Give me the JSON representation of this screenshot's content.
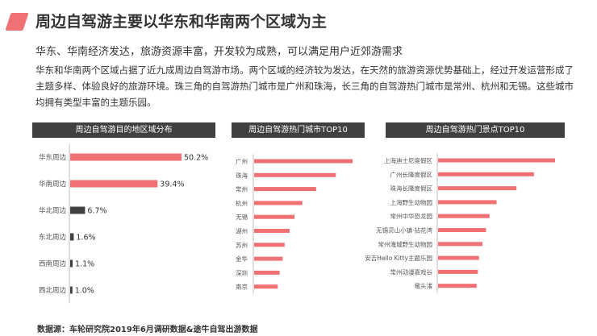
{
  "title": "周边自驾游主要以华东和华南两个区域为主",
  "subtitle": "华东、华南经济发达，旅游资源丰富，开发较为成熟，可以满足用户近郊游需求",
  "body": "华东和华南两个区域占据了近九成周边自驾游市场。两个区域的经济较为发达，在天然的旅游资源优势基础上，经过开发运营形成了主题多样、体验良好的旅游环境。珠三角的自驾游热门城市是广州和珠海，长三角的自驾游热门城市是常州、杭州和无锡。这些城市均拥有类型丰富的主题乐园。",
  "source": "数据源：车轮研究院2019年6月调研数据&途牛自驾出游数据",
  "colors": {
    "accent": "#f07174",
    "bar": "#f07174",
    "bar_dark": "#404040",
    "header": "#404040"
  },
  "chart_data": [
    {
      "type": "bar",
      "orientation": "horizontal",
      "title": "周边自驾游目的地区域分布",
      "categories": [
        "华东周边",
        "华南周边",
        "华北周边",
        "东北周边",
        "西南周边",
        "西北周边"
      ],
      "values": [
        50.2,
        39.4,
        6.7,
        1.6,
        1.1,
        1.0
      ],
      "labels": [
        "50.2%",
        "39.4%",
        "6.7%",
        "1.6%",
        "1.1%",
        "1.0%"
      ],
      "bar_colors": [
        "#f07174",
        "#f07174",
        "#404040",
        "#404040",
        "#404040",
        "#404040"
      ]
    },
    {
      "type": "bar",
      "orientation": "horizontal",
      "title": "周边自驾游热门城市TOP10",
      "categories": [
        "广州",
        "珠海",
        "常州",
        "杭州",
        "无锡",
        "湖州",
        "苏州",
        "金华",
        "深圳",
        "南京"
      ],
      "values": [
        100,
        83,
        63,
        49,
        41,
        36,
        31,
        29,
        26,
        24
      ]
    },
    {
      "type": "bar",
      "orientation": "horizontal",
      "title": "周边自驾游热门景点TOP10",
      "categories": [
        "上海迪士尼度假区",
        "广州长隆度假区",
        "珠海长隆度假区",
        "上海野生动物园",
        "常州中华恐龙园",
        "无锡灵山小镇·拈花湾",
        "常州淹城野生动物园",
        "安吉Hello Kitty主题乐园",
        "常州动漫嘉戏谷",
        "鼋头渚"
      ],
      "values": [
        100,
        82,
        67,
        50,
        44,
        41,
        38,
        35,
        34,
        33
      ]
    }
  ]
}
